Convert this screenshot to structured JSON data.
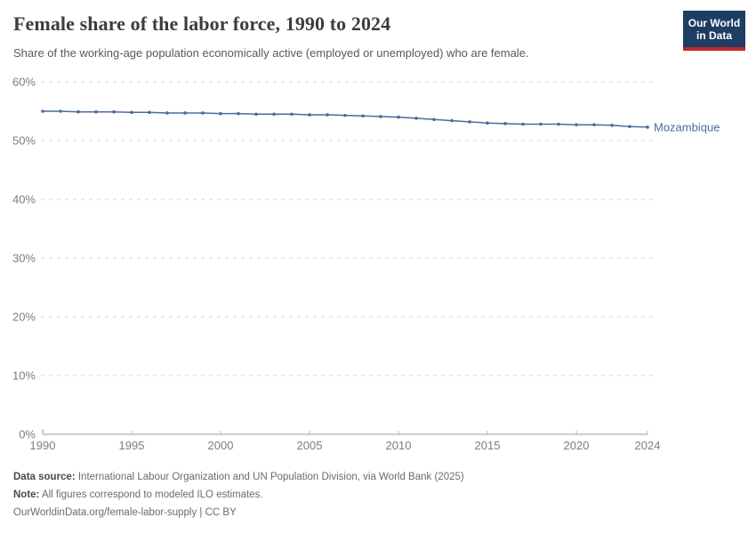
{
  "header": {
    "title": "Female share of the labor force, 1990 to 2024",
    "subtitle": "Share of the working-age population economically active (employed or unemployed) who are female."
  },
  "logo": {
    "line1": "Our World",
    "line2": "in Data",
    "bg_color": "#1d3d63",
    "bar_color": "#c0272d"
  },
  "chart_data": {
    "type": "line",
    "title": "Female share of the labor force, 1990 to 2024",
    "xlabel": "",
    "ylabel": "",
    "xlim": [
      1990,
      2024
    ],
    "ylim": [
      0,
      60
    ],
    "grid": "horizontal-dashed",
    "xticks": [
      1990,
      1995,
      2000,
      2005,
      2010,
      2015,
      2020,
      2024
    ],
    "yticks": [
      "0%",
      "10%",
      "20%",
      "30%",
      "40%",
      "50%",
      "60%"
    ],
    "x": [
      1990,
      1991,
      1992,
      1993,
      1994,
      1995,
      1996,
      1997,
      1998,
      1999,
      2000,
      2001,
      2002,
      2003,
      2004,
      2005,
      2006,
      2007,
      2008,
      2009,
      2010,
      2011,
      2012,
      2013,
      2014,
      2015,
      2016,
      2017,
      2018,
      2019,
      2020,
      2021,
      2022,
      2023,
      2024
    ],
    "series": [
      {
        "name": "Mozambique",
        "color": "#4c6a9c",
        "values": [
          55.0,
          55.0,
          54.9,
          54.9,
          54.9,
          54.8,
          54.8,
          54.7,
          54.7,
          54.7,
          54.6,
          54.6,
          54.5,
          54.5,
          54.5,
          54.4,
          54.4,
          54.3,
          54.2,
          54.1,
          54.0,
          53.8,
          53.6,
          53.4,
          53.2,
          53.0,
          52.9,
          52.8,
          52.8,
          52.8,
          52.7,
          52.7,
          52.6,
          52.4,
          52.3
        ]
      }
    ],
    "legend_position": "end-of-line-label"
  },
  "footer": {
    "source_label": "Data source:",
    "source_text": " International Labour Organization and UN Population Division, via World Bank (2025)",
    "note_label": "Note:",
    "note_text": " All figures correspond to modeled ILO estimates.",
    "link": "OurWorldinData.org/female-labor-supply | CC BY"
  }
}
